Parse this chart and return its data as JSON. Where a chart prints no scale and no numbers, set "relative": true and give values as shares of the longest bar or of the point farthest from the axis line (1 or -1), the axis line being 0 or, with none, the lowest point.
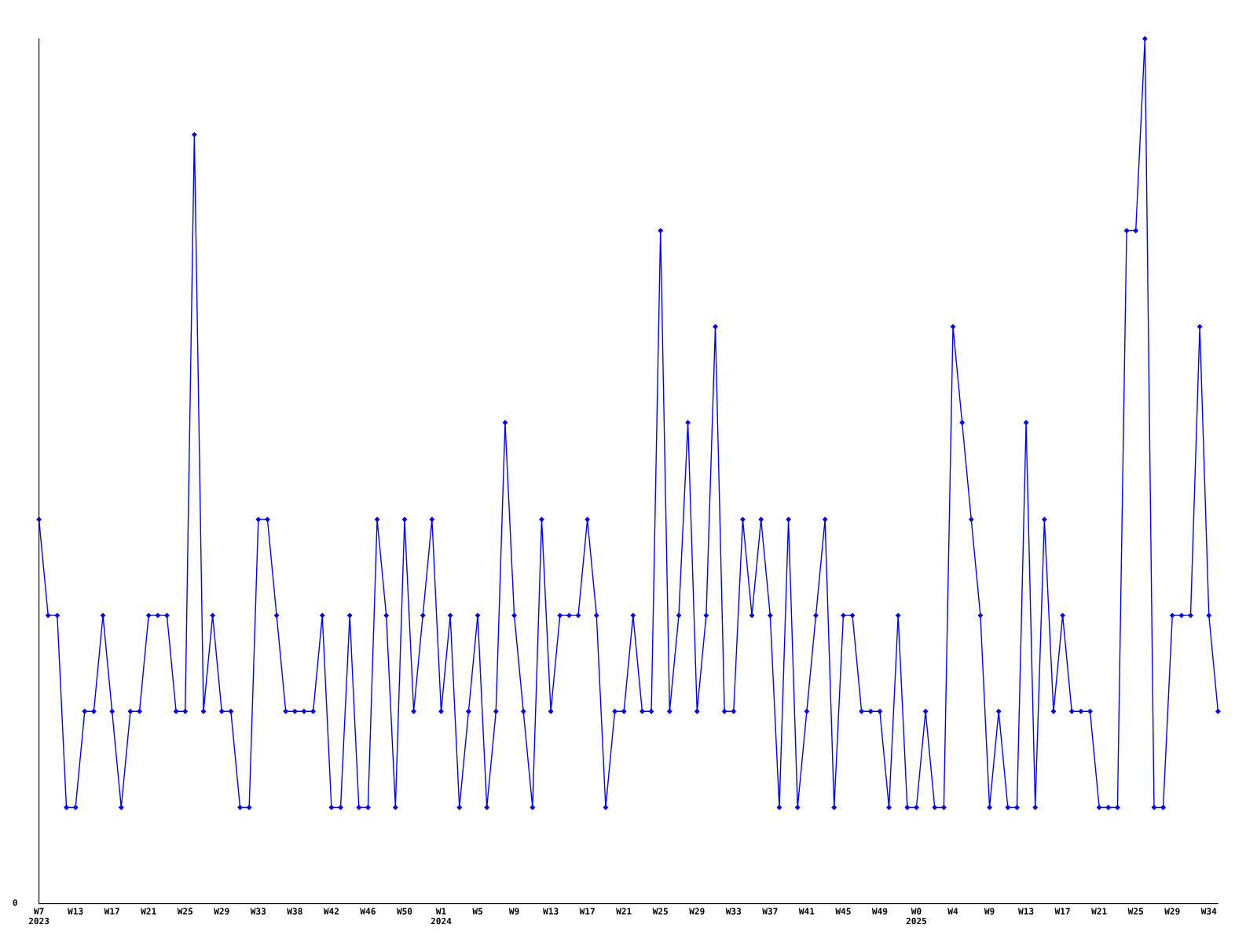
{
  "chart_data": {
    "type": "line",
    "relative": true,
    "categories": [
      "W7\n2023",
      null,
      null,
      null,
      "W13",
      null,
      null,
      null,
      "W17",
      null,
      null,
      null,
      "W21",
      null,
      null,
      null,
      "W25",
      null,
      null,
      null,
      "W29",
      null,
      null,
      null,
      "W33",
      null,
      null,
      null,
      "W38",
      null,
      null,
      null,
      "W42",
      null,
      null,
      null,
      "W46",
      null,
      null,
      null,
      "W50",
      null,
      null,
      null,
      "W1\n2024",
      null,
      null,
      null,
      "W5",
      null,
      null,
      null,
      "W9",
      null,
      null,
      null,
      "W13",
      null,
      null,
      null,
      "W17",
      null,
      null,
      null,
      "W21",
      null,
      null,
      null,
      "W25",
      null,
      null,
      null,
      "W29",
      null,
      null,
      null,
      "W33",
      null,
      null,
      null,
      "W37",
      null,
      null,
      null,
      "W41",
      null,
      null,
      null,
      "W45",
      null,
      null,
      null,
      "W49",
      null,
      null,
      null,
      "W0\n2025",
      null,
      null,
      null,
      "W4",
      null,
      null,
      null,
      "W9",
      null,
      null,
      null,
      "W13",
      null,
      null,
      null,
      "W17",
      null,
      null,
      null,
      "W21",
      null,
      null,
      null,
      "W25",
      null,
      null,
      null,
      "W29",
      null,
      null,
      null,
      "W34",
      null
    ],
    "series": [
      {
        "color": "#0000ff",
        "values": [
          0.444,
          0.333,
          0.333,
          0.111,
          0.111,
          0.222,
          0.222,
          0.333,
          0.222,
          0.111,
          0.222,
          0.222,
          0.333,
          0.333,
          0.333,
          0.222,
          0.222,
          0.889,
          0.222,
          0.333,
          0.222,
          0.222,
          0.111,
          0.111,
          0.444,
          0.444,
          0.333,
          0.222,
          0.222,
          0.222,
          0.222,
          0.333,
          0.111,
          0.111,
          0.333,
          0.111,
          0.111,
          0.444,
          0.333,
          0.111,
          0.444,
          0.222,
          0.333,
          0.444,
          0.222,
          0.333,
          0.111,
          0.222,
          0.333,
          0.111,
          0.222,
          0.556,
          0.333,
          0.222,
          0.111,
          0.444,
          0.222,
          0.333,
          0.333,
          0.333,
          0.444,
          0.333,
          0.111,
          0.222,
          0.222,
          0.333,
          0.222,
          0.222,
          0.778,
          0.222,
          0.333,
          0.556,
          0.222,
          0.333,
          0.667,
          0.222,
          0.222,
          0.444,
          0.333,
          0.444,
          0.333,
          0.111,
          0.444,
          0.111,
          0.222,
          0.333,
          0.444,
          0.111,
          0.333,
          0.333,
          0.222,
          0.222,
          0.222,
          0.111,
          0.333,
          0.111,
          0.111,
          0.222,
          0.111,
          0.111,
          0.667,
          0.556,
          0.444,
          0.333,
          0.111,
          0.222,
          0.111,
          0.111,
          0.556,
          0.111,
          0.444,
          0.222,
          0.333,
          0.222,
          0.222,
          0.222,
          0.111,
          0.111,
          0.111,
          0.778,
          0.778,
          1,
          0.111,
          0.111,
          0.333,
          0.333,
          0.333,
          0.667,
          0.333,
          0.222
        ]
      }
    ],
    "annotations": [
      "0"
    ],
    "marker": "diamond",
    "line_style": "solid"
  }
}
